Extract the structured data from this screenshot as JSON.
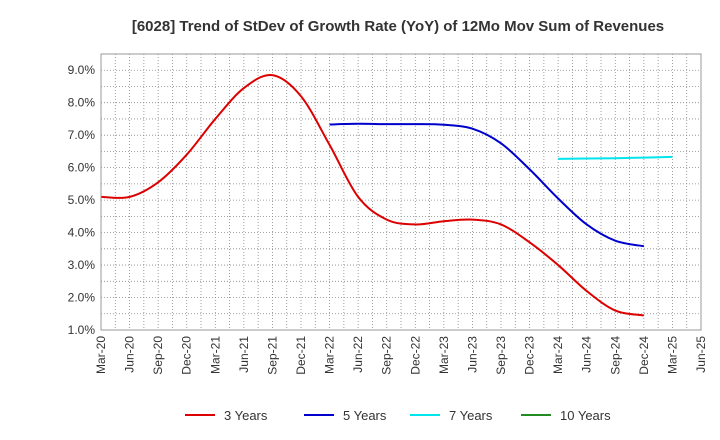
{
  "chart_data": {
    "type": "line",
    "title": "[6028]  Trend of StDev of Growth Rate (YoY) of 12Mo Mov Sum of Revenues",
    "xlabel": "",
    "ylabel": "",
    "x_labels": [
      "Mar-20",
      "Jun-20",
      "Sep-20",
      "Dec-20",
      "Mar-21",
      "Jun-21",
      "Sep-21",
      "Dec-21",
      "Mar-22",
      "Jun-22",
      "Sep-22",
      "Dec-22",
      "Mar-23",
      "Jun-23",
      "Sep-23",
      "Dec-23",
      "Mar-24",
      "Jun-24",
      "Sep-24",
      "Dec-24",
      "Mar-25",
      "Jun-25"
    ],
    "ylim": [
      1.0,
      9.5
    ],
    "y_ticks": [
      1.0,
      2.0,
      3.0,
      4.0,
      5.0,
      6.0,
      7.0,
      8.0,
      9.0
    ],
    "y_tick_labels": [
      "1.0%",
      "2.0%",
      "3.0%",
      "4.0%",
      "5.0%",
      "6.0%",
      "7.0%",
      "8.0%",
      "9.0%"
    ],
    "grid": true,
    "legend_position": "bottom",
    "series": [
      {
        "name": "3 Years",
        "color": "#dd0000",
        "start_index": 0,
        "values": [
          5.1,
          5.1,
          5.55,
          6.4,
          7.5,
          8.45,
          8.85,
          8.2,
          6.7,
          5.1,
          4.4,
          4.25,
          4.35,
          4.4,
          4.25,
          3.7,
          3.0,
          2.2,
          1.6,
          1.45
        ]
      },
      {
        "name": "5 Years",
        "color": "#0000cc",
        "start_index": 8,
        "values": [
          7.33,
          7.35,
          7.34,
          7.34,
          7.32,
          7.2,
          6.75,
          5.95,
          5.05,
          4.25,
          3.75,
          3.58
        ]
      },
      {
        "name": "7 Years",
        "color": "#00e5ee",
        "start_index": 16,
        "values": [
          6.27,
          6.28,
          6.29,
          6.31,
          6.33
        ]
      },
      {
        "name": "10 Years",
        "color": "#228b22",
        "start_index": 0,
        "values": []
      }
    ]
  }
}
